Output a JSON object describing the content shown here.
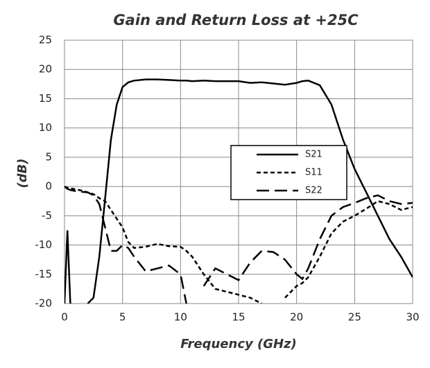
{
  "chart_data": {
    "type": "line",
    "title": "Gain and Return Loss at +25C",
    "xlabel": "Frequency (GHz)",
    "ylabel": "(dB)",
    "x": [
      0,
      0.25,
      0.5,
      0.75,
      1,
      1.5,
      2,
      2.5,
      3,
      3.5,
      4,
      4.5,
      5,
      5.5,
      6,
      7,
      8,
      9,
      10,
      10.5,
      11,
      12,
      13,
      14,
      15,
      16,
      17,
      18,
      19,
      20,
      20.5,
      21,
      22,
      23,
      24,
      25,
      26,
      27,
      28,
      29,
      30
    ],
    "series": [
      {
        "name": "S21",
        "color": "#000000",
        "dash": "solid",
        "values": [
          -20,
          -7.5,
          -20,
          null,
          null,
          null,
          -20,
          -19,
          -12,
          -2,
          8,
          14,
          17,
          17.8,
          18.1,
          18.3,
          18.3,
          18.2,
          18.1,
          18.1,
          18,
          18.1,
          18,
          18,
          18,
          17.7,
          17.8,
          17.6,
          17.4,
          17.7,
          18,
          18.1,
          17.3,
          14,
          8,
          3,
          -1,
          -5,
          -9,
          -12,
          -15.5
        ]
      },
      {
        "name": "S11",
        "color": "#000000",
        "dash": "short",
        "values": [
          0,
          -0.2,
          -0.3,
          -0.4,
          -0.5,
          -0.7,
          -1,
          -1.3,
          -2,
          -2.5,
          -4,
          -5.5,
          -7,
          -9.5,
          -10.5,
          -10.3,
          -9.8,
          -10.2,
          -10.3,
          -11,
          -12,
          -15,
          -17.5,
          -18,
          -18.5,
          -19,
          -20,
          null,
          -19,
          -17,
          -16.5,
          -15.5,
          -12,
          -8,
          -6,
          -5,
          -3.8,
          -2.5,
          -3,
          -4,
          -3.5
        ]
      },
      {
        "name": "S22",
        "color": "#000000",
        "dash": "long",
        "values": [
          0,
          -0.4,
          -0.6,
          -0.7,
          -0.8,
          -0.9,
          -1,
          -1.5,
          -3,
          -7,
          -11,
          -11,
          -10,
          -10.5,
          -12,
          -14.5,
          -14,
          -13.5,
          -15,
          -20,
          null,
          -17,
          -14,
          -15,
          -16,
          -13,
          -11,
          -11.2,
          -12.5,
          -15,
          -15.8,
          -14,
          -9,
          -5,
          -3.5,
          -2.8,
          -2,
          -1.5,
          -2.5,
          -3,
          -2.8
        ]
      }
    ],
    "xlim": [
      0,
      30
    ],
    "xticks": [
      0,
      5,
      10,
      15,
      20,
      25,
      30
    ],
    "ylim": [
      -20,
      25
    ],
    "yticks": [
      -20,
      -15,
      -10,
      -5,
      0,
      5,
      10,
      15,
      20,
      25
    ],
    "grid": true,
    "legend": "right"
  }
}
